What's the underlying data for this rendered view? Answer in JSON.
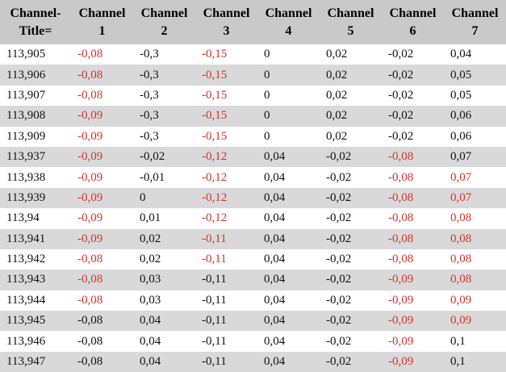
{
  "table": {
    "header": [
      [
        "Channel-",
        "Title="
      ],
      [
        "Channel",
        "1"
      ],
      [
        "Channel",
        "2"
      ],
      [
        "Channel",
        "3"
      ],
      [
        "Channel",
        "4"
      ],
      [
        "Channel",
        "5"
      ],
      [
        "Channel",
        "6"
      ],
      [
        "Channel",
        "7"
      ]
    ],
    "rows": [
      [
        "113,905",
        "-0,08",
        "-0,3",
        "-0,15",
        "0",
        "0,02",
        "-0,02",
        "0,04"
      ],
      [
        "113,906",
        "-0,08",
        "-0,3",
        "-0,15",
        "0",
        "0,02",
        "-0,02",
        "0,05"
      ],
      [
        "113,907",
        "-0,08",
        "-0,3",
        "-0,15",
        "0",
        "0,02",
        "-0,02",
        "0,05"
      ],
      [
        "113,908",
        "-0,09",
        "-0,3",
        "-0,15",
        "0",
        "0,02",
        "-0,02",
        "0,06"
      ],
      [
        "113,909",
        "-0,09",
        "-0,3",
        "-0,15",
        "0",
        "0,02",
        "-0,02",
        "0,06"
      ],
      [
        "113,937",
        "-0,09",
        "-0,02",
        "-0,12",
        "0,04",
        "-0,02",
        "-0,08",
        "0,07"
      ],
      [
        "113,938",
        "-0,09",
        "-0,01",
        "-0,12",
        "0,04",
        "-0,02",
        "-0,08",
        "0,07"
      ],
      [
        "113,939",
        "-0,09",
        "0",
        "-0,12",
        "0,04",
        "-0,02",
        "-0,08",
        "0,07"
      ],
      [
        "113,94",
        "-0,09",
        "0,01",
        "-0,12",
        "0,04",
        "-0,02",
        "-0,08",
        "0,08"
      ],
      [
        "113,941",
        "-0,09",
        "0,02",
        "-0,11",
        "0,04",
        "-0,02",
        "-0,08",
        "0,08"
      ],
      [
        "113,942",
        "-0,08",
        "0,02",
        "-0,11",
        "0,04",
        "-0,02",
        "-0,08",
        "0,08"
      ],
      [
        "113,943",
        "-0,08",
        "0,03",
        "-0,11",
        "0,04",
        "-0,02",
        "-0,09",
        "0,08"
      ],
      [
        "113,944",
        "-0,08",
        "0,03",
        "-0,11",
        "0,04",
        "-0,02",
        "-0,09",
        "0,09"
      ],
      [
        "113,945",
        "-0,08",
        "0,04",
        "-0,11",
        "0,04",
        "-0,02",
        "-0,09",
        "0,09"
      ],
      [
        "113,946",
        "-0,08",
        "0,04",
        "-0,11",
        "0,04",
        "-0,02",
        "-0,09",
        "0,1"
      ],
      [
        "113,947",
        "-0,08",
        "0,04",
        "-0,11",
        "0,04",
        "-0,02",
        "-0,09",
        "0,1"
      ]
    ],
    "highlight_color": "#d0342c",
    "highlighted_cells": [
      [
        1,
        3
      ],
      [
        1,
        3
      ],
      [
        1,
        3
      ],
      [
        1,
        3
      ],
      [
        1,
        3
      ],
      [
        1,
        3,
        6
      ],
      [
        1,
        3,
        6,
        7
      ],
      [
        1,
        3,
        6,
        7
      ],
      [
        1,
        3,
        6,
        7
      ],
      [
        1,
        3,
        6,
        7
      ],
      [
        1,
        3,
        6,
        7
      ],
      [
        1,
        6,
        7
      ],
      [
        1,
        6,
        7
      ],
      [
        6,
        7
      ],
      [
        6
      ],
      [
        6
      ]
    ]
  }
}
